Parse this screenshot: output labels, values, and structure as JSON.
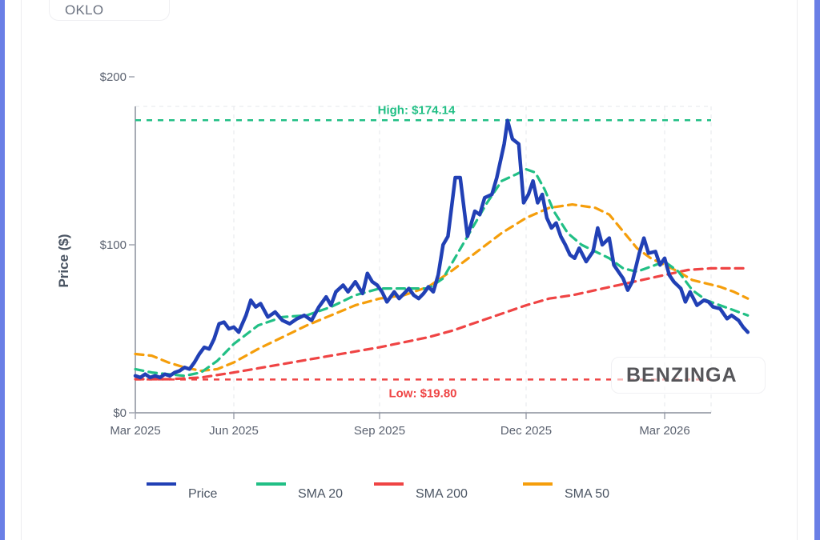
{
  "ticker": "OKLO",
  "watermark": "BENZINGA",
  "colors": {
    "price": "#2140b5",
    "sma20": "#21bf85",
    "sma200": "#ef4444",
    "sma50": "#f59e0b",
    "frame": "#6a7fe6"
  },
  "chart_data": {
    "type": "line",
    "title": "",
    "xlabel": "",
    "ylabel": "Price ($)",
    "ylim": [
      0,
      200
    ],
    "x_units": "months since Mar 2025 tick (Jun 2025 = 3, Sep 2025 = 6, Dec 2025 = 9, Mar 2026 = 12)",
    "yticks": [
      {
        "value": 0,
        "label": "$0"
      },
      {
        "value": 100,
        "label": "$100"
      },
      {
        "value": 200,
        "label": "$200"
      }
    ],
    "xticks": [
      {
        "value": 0,
        "label": "Mar 2025"
      },
      {
        "value": 3,
        "label": "Jun 2025"
      },
      {
        "value": 6,
        "label": "Sep 2025"
      },
      {
        "value": 9,
        "label": "Dec 2025"
      },
      {
        "value": 12,
        "label": "Mar 2026"
      }
    ],
    "grid": true,
    "legend_position": "bottom",
    "annotations": [
      {
        "label": "High: $174.14",
        "value": 174.14
      },
      {
        "label": "Low: $19.80",
        "value": 19.8
      }
    ],
    "series": [
      {
        "name": "Price",
        "key": "price",
        "style": "solid",
        "points": [
          [
            0.0,
            22
          ],
          [
            0.15,
            21
          ],
          [
            0.3,
            23
          ],
          [
            0.45,
            21
          ],
          [
            0.6,
            22
          ],
          [
            0.75,
            21
          ],
          [
            0.9,
            23
          ],
          [
            1.05,
            22
          ],
          [
            1.2,
            24
          ],
          [
            1.35,
            25
          ],
          [
            1.5,
            27
          ],
          [
            1.65,
            26
          ],
          [
            1.8,
            30
          ],
          [
            1.95,
            35
          ],
          [
            2.1,
            39
          ],
          [
            2.25,
            38
          ],
          [
            2.4,
            44
          ],
          [
            2.55,
            53
          ],
          [
            2.7,
            54
          ],
          [
            2.85,
            50
          ],
          [
            3.0,
            51
          ],
          [
            3.1,
            48
          ],
          [
            3.25,
            58
          ],
          [
            3.35,
            67
          ],
          [
            3.45,
            63
          ],
          [
            3.55,
            65
          ],
          [
            3.7,
            57
          ],
          [
            3.85,
            60
          ],
          [
            4.0,
            55
          ],
          [
            4.15,
            53
          ],
          [
            4.3,
            56
          ],
          [
            4.45,
            58
          ],
          [
            4.6,
            55
          ],
          [
            4.75,
            63
          ],
          [
            4.9,
            69
          ],
          [
            5.0,
            64
          ],
          [
            5.1,
            72
          ],
          [
            5.25,
            76
          ],
          [
            5.35,
            72
          ],
          [
            5.5,
            78
          ],
          [
            5.65,
            71
          ],
          [
            5.75,
            83
          ],
          [
            5.85,
            78
          ],
          [
            5.95,
            76
          ],
          [
            6.05,
            72
          ],
          [
            6.15,
            66
          ],
          [
            6.3,
            72
          ],
          [
            6.4,
            68
          ],
          [
            6.5,
            71
          ],
          [
            6.6,
            74
          ],
          [
            6.7,
            70
          ],
          [
            6.8,
            68
          ],
          [
            6.9,
            71
          ],
          [
            7.0,
            75
          ],
          [
            7.1,
            72
          ],
          [
            7.2,
            82
          ],
          [
            7.3,
            100
          ],
          [
            7.4,
            105
          ],
          [
            7.55,
            140
          ],
          [
            7.65,
            140
          ],
          [
            7.8,
            105
          ],
          [
            7.95,
            120
          ],
          [
            8.05,
            118
          ],
          [
            8.15,
            128
          ],
          [
            8.3,
            130
          ],
          [
            8.4,
            140
          ],
          [
            8.55,
            160
          ],
          [
            8.62,
            174
          ],
          [
            8.72,
            163
          ],
          [
            8.85,
            160
          ],
          [
            8.95,
            125
          ],
          [
            9.05,
            130
          ],
          [
            9.15,
            138
          ],
          [
            9.25,
            125
          ],
          [
            9.35,
            130
          ],
          [
            9.45,
            116
          ],
          [
            9.55,
            110
          ],
          [
            9.65,
            113
          ],
          [
            9.75,
            105
          ],
          [
            9.85,
            100
          ],
          [
            9.95,
            94
          ],
          [
            10.05,
            92
          ],
          [
            10.15,
            98
          ],
          [
            10.3,
            90
          ],
          [
            10.45,
            96
          ],
          [
            10.55,
            110
          ],
          [
            10.65,
            100
          ],
          [
            10.8,
            104
          ],
          [
            10.9,
            88
          ],
          [
            11.0,
            84
          ],
          [
            11.1,
            80
          ],
          [
            11.2,
            73
          ],
          [
            11.3,
            78
          ],
          [
            11.45,
            95
          ],
          [
            11.55,
            104
          ],
          [
            11.65,
            95
          ],
          [
            11.8,
            96
          ],
          [
            11.9,
            88
          ],
          [
            12.0,
            92
          ],
          [
            12.1,
            82
          ],
          [
            12.2,
            78
          ],
          [
            12.35,
            74
          ],
          [
            12.45,
            66
          ],
          [
            12.55,
            72
          ],
          [
            12.7,
            64
          ],
          [
            12.85,
            67
          ],
          [
            12.95,
            66
          ],
          [
            13.05,
            63
          ],
          [
            13.2,
            62
          ],
          [
            13.35,
            56
          ],
          [
            13.45,
            58
          ],
          [
            13.6,
            55
          ],
          [
            13.7,
            51
          ],
          [
            13.8,
            48
          ]
        ]
      },
      {
        "name": "SMA 20",
        "key": "sma20",
        "style": "dash",
        "points": [
          [
            0.0,
            26
          ],
          [
            0.5,
            24
          ],
          [
            1.0,
            23
          ],
          [
            1.5,
            22
          ],
          [
            2.0,
            24
          ],
          [
            2.5,
            31
          ],
          [
            3.0,
            41
          ],
          [
            3.5,
            52
          ],
          [
            4.0,
            57
          ],
          [
            4.5,
            58
          ],
          [
            5.0,
            63
          ],
          [
            5.5,
            70
          ],
          [
            6.0,
            74
          ],
          [
            6.5,
            74
          ],
          [
            7.0,
            74
          ],
          [
            7.3,
            80
          ],
          [
            7.6,
            95
          ],
          [
            7.9,
            110
          ],
          [
            8.2,
            125
          ],
          [
            8.5,
            138
          ],
          [
            8.8,
            142
          ],
          [
            9.0,
            145
          ],
          [
            9.2,
            143
          ],
          [
            9.4,
            133
          ],
          [
            9.6,
            120
          ],
          [
            9.9,
            107
          ],
          [
            10.2,
            100
          ],
          [
            10.5,
            96
          ],
          [
            10.8,
            92
          ],
          [
            11.1,
            86
          ],
          [
            11.4,
            84
          ],
          [
            11.7,
            87
          ],
          [
            12.0,
            90
          ],
          [
            12.3,
            84
          ],
          [
            12.6,
            73
          ],
          [
            12.9,
            67
          ],
          [
            13.2,
            64
          ],
          [
            13.5,
            61
          ],
          [
            13.8,
            58
          ]
        ]
      },
      {
        "name": "SMA 200",
        "key": "sma200",
        "style": "dash",
        "points": [
          [
            0.0,
            20
          ],
          [
            1.0,
            20
          ],
          [
            2.0,
            21
          ],
          [
            3.0,
            24
          ],
          [
            4.0,
            29
          ],
          [
            5.0,
            34
          ],
          [
            6.0,
            39
          ],
          [
            7.0,
            45
          ],
          [
            7.5,
            49
          ],
          [
            8.0,
            54
          ],
          [
            8.5,
            59
          ],
          [
            9.0,
            64
          ],
          [
            9.5,
            68
          ],
          [
            10.0,
            70
          ],
          [
            10.5,
            73
          ],
          [
            11.0,
            76
          ],
          [
            11.5,
            79
          ],
          [
            12.0,
            82
          ],
          [
            12.5,
            85
          ],
          [
            13.0,
            86
          ],
          [
            13.8,
            86
          ]
        ]
      },
      {
        "name": "SMA 50",
        "key": "sma50",
        "style": "dash",
        "points": [
          [
            0.0,
            35
          ],
          [
            0.5,
            34
          ],
          [
            1.0,
            30
          ],
          [
            1.5,
            27
          ],
          [
            2.0,
            25
          ],
          [
            2.5,
            26
          ],
          [
            3.0,
            30
          ],
          [
            3.5,
            38
          ],
          [
            4.0,
            45
          ],
          [
            4.5,
            52
          ],
          [
            5.0,
            58
          ],
          [
            5.5,
            64
          ],
          [
            6.0,
            68
          ],
          [
            6.5,
            70
          ],
          [
            7.0,
            75
          ],
          [
            7.5,
            85
          ],
          [
            8.0,
            96
          ],
          [
            8.5,
            107
          ],
          [
            9.0,
            116
          ],
          [
            9.5,
            122
          ],
          [
            10.0,
            124
          ],
          [
            10.5,
            122
          ],
          [
            10.8,
            118
          ],
          [
            11.1,
            108
          ],
          [
            11.4,
            98
          ],
          [
            11.7,
            92
          ],
          [
            12.0,
            88
          ],
          [
            12.3,
            84
          ],
          [
            12.6,
            79
          ],
          [
            12.9,
            77
          ],
          [
            13.2,
            75
          ],
          [
            13.5,
            72
          ],
          [
            13.8,
            68
          ]
        ]
      }
    ]
  },
  "legend": [
    {
      "label": "Price",
      "key": "price"
    },
    {
      "label": "SMA 20",
      "key": "sma20"
    },
    {
      "label": "SMA 200",
      "key": "sma200"
    },
    {
      "label": "SMA 50",
      "key": "sma50"
    }
  ]
}
